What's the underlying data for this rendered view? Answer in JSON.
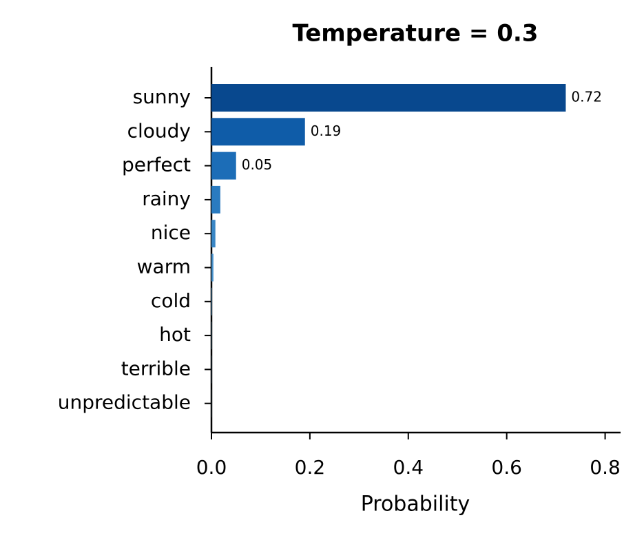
{
  "chart_data": {
    "type": "barh",
    "title": "Temperature = 0.3",
    "xlabel": "Probability",
    "categories": [
      "sunny",
      "cloudy",
      "perfect",
      "rainy",
      "nice",
      "warm",
      "cold",
      "hot",
      "terrible",
      "unpredictable"
    ],
    "values": [
      0.72,
      0.19,
      0.05,
      0.018,
      0.008,
      0.004,
      0.001,
      0.0005,
      0.0003,
      0.0002
    ],
    "value_labels": [
      "0.72",
      "0.19",
      "0.05",
      null,
      null,
      null,
      null,
      null,
      null,
      null
    ],
    "colors": [
      "#08488e",
      "#0f5ca8",
      "#1c6db7",
      "#2a7bc0",
      "#3a87c6",
      "#4a93cc",
      "#5a9fd1",
      "#6aabd6",
      "#7ab6db",
      "#8ac1e0"
    ],
    "xlim": [
      0,
      0.83
    ],
    "xticks": [
      {
        "value": 0,
        "label": "0.0"
      },
      0.2,
      0.4,
      0.6,
      0.8
    ]
  }
}
